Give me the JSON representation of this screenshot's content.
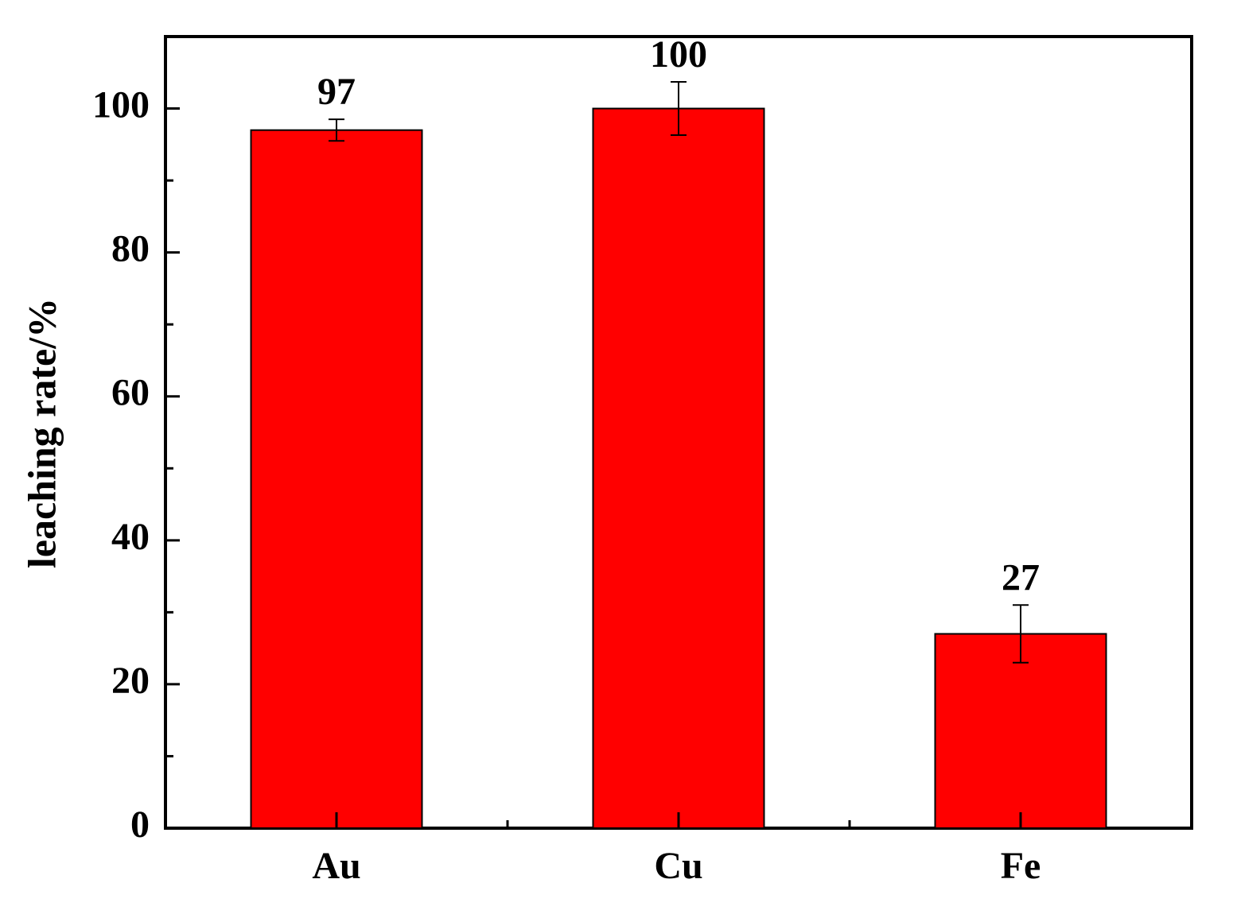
{
  "chart_data": {
    "type": "bar",
    "y_label": "leaching rate/%",
    "categories": [
      "Au",
      "Cu",
      "Fe"
    ],
    "values": [
      97,
      100,
      27
    ],
    "errors": [
      1.5,
      3.7,
      4
    ],
    "color": "#ff0000",
    "ylim": [
      0,
      110
    ],
    "yticks": [
      0,
      20,
      40,
      60,
      80,
      100
    ],
    "yminorticks": [
      10,
      30,
      50,
      70,
      90
    ],
    "grid": false
  }
}
